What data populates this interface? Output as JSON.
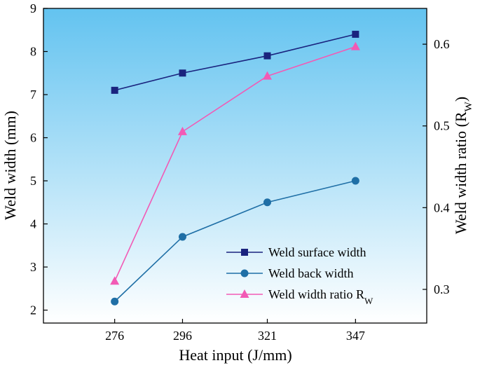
{
  "chart_data": {
    "type": "line",
    "title": "",
    "xlabel": "Heat input (J/mm)",
    "ylabel": "Weld width (mm)",
    "y2label": {
      "main": "Weld width ratio (R",
      "sub": "W",
      "close": ")"
    },
    "categories": [
      "276",
      "296",
      "321",
      "347"
    ],
    "x": [
      276,
      296,
      321,
      347
    ],
    "xlim": [
      255,
      368
    ],
    "ylim": [
      1.7,
      9
    ],
    "y2lim": [
      0.2588,
      0.6438
    ],
    "yticks": [
      "2",
      "3",
      "4",
      "5",
      "6",
      "7",
      "8",
      "9"
    ],
    "y2ticks": [
      "0.3",
      "0.4",
      "0.5",
      "0.6"
    ],
    "legend_position": "lower-right",
    "background_gradient": [
      "#63c3f0",
      "#ffffff"
    ],
    "series": [
      {
        "name": "Weld surface width",
        "name_sub": "",
        "axis": "left",
        "marker": "square",
        "color": "#1a237e",
        "values": [
          7.1,
          7.5,
          7.9,
          8.4
        ]
      },
      {
        "name": "Weld back width",
        "name_sub": "",
        "axis": "left",
        "marker": "circle",
        "color": "#1f6fa6",
        "values": [
          2.2,
          3.7,
          4.5,
          5.0
        ]
      },
      {
        "name": "Weld width ratio R",
        "name_sub": "W",
        "axis": "right",
        "marker": "triangle",
        "color": "#f25ab5",
        "values": [
          0.31,
          0.493,
          0.561,
          0.597
        ]
      }
    ]
  }
}
